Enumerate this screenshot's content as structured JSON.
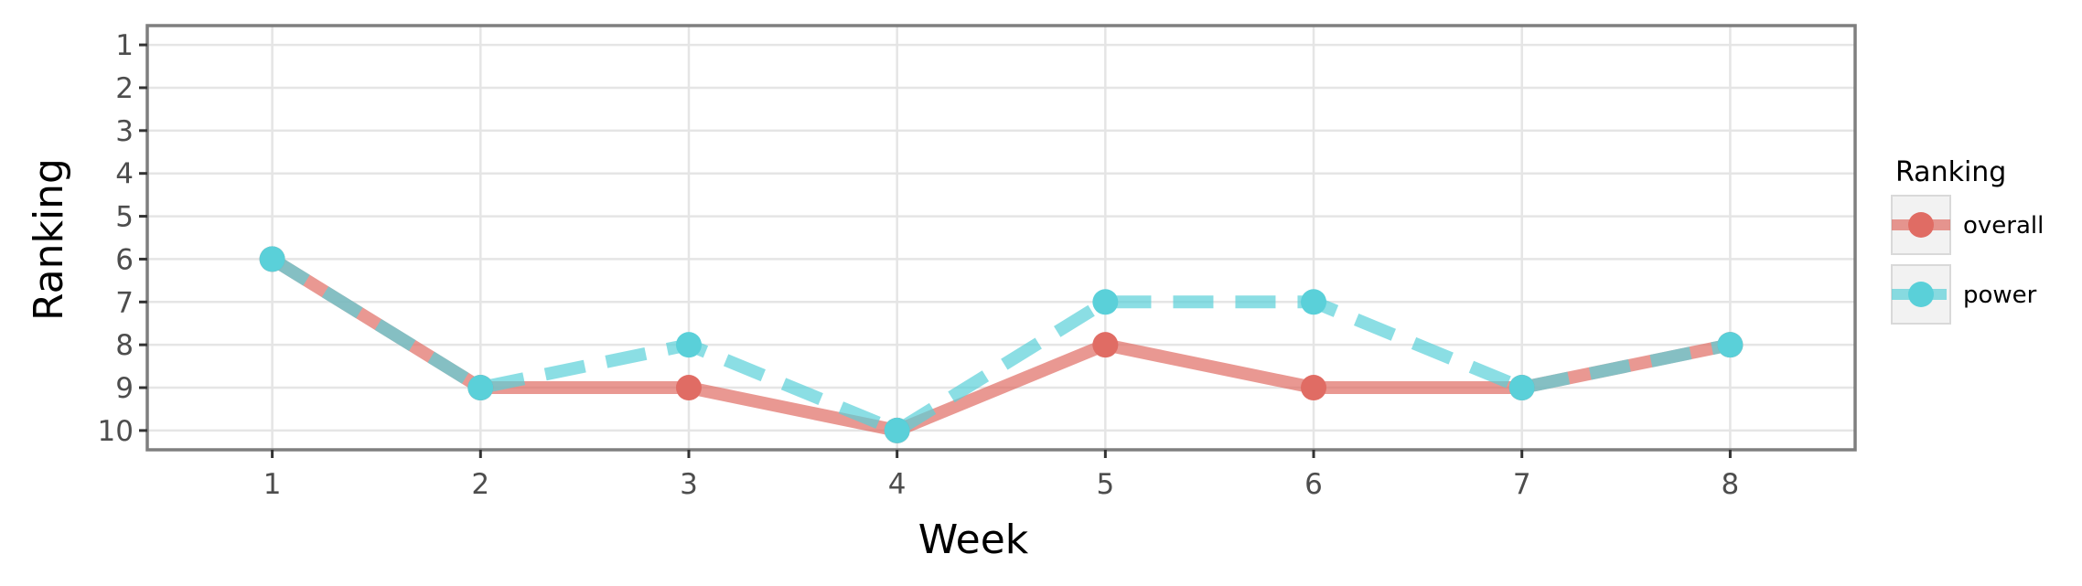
{
  "chart_data": {
    "type": "line",
    "xlabel": "Week",
    "ylabel": "Ranking",
    "x": [
      1,
      2,
      3,
      4,
      5,
      6,
      7,
      8
    ],
    "xlim": [
      0.4,
      8.6
    ],
    "ylim": [
      10.45,
      0.55
    ],
    "y_reversed": true,
    "x_ticks": [
      "1",
      "2",
      "3",
      "4",
      "5",
      "6",
      "7",
      "8"
    ],
    "y_ticks": [
      "1",
      "2",
      "3",
      "4",
      "5",
      "6",
      "7",
      "8",
      "9",
      "10"
    ],
    "grid": true,
    "legend": {
      "title": "Ranking",
      "position": "right"
    },
    "series": [
      {
        "name": "overall",
        "values": [
          6,
          9,
          9,
          10,
          8,
          9,
          9,
          8
        ],
        "color": "#e06c64",
        "linestyle": "solid"
      },
      {
        "name": "power",
        "values": [
          6,
          9,
          8,
          10,
          7,
          7,
          9,
          8
        ],
        "color": "#5ad0d9",
        "linestyle": "dashed"
      }
    ]
  }
}
